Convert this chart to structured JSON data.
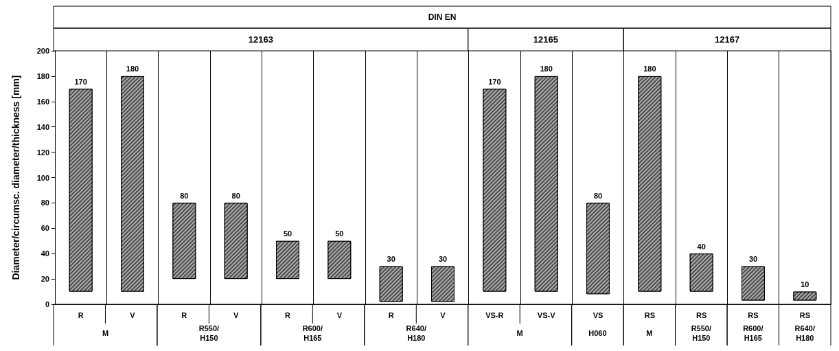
{
  "chart_data": {
    "type": "bar",
    "ylabel": "Diameter/circumsc. diameter/thickness [mm]",
    "categories": [
      "R",
      "V",
      "R",
      "V",
      "R",
      "V",
      "R",
      "V",
      "VS-R",
      "VS-V",
      "VS",
      "RS",
      "RS",
      "RS",
      "RS"
    ],
    "base": [
      10,
      10,
      20,
      20,
      20,
      20,
      2,
      2,
      10,
      10,
      8,
      10,
      10,
      3,
      3
    ],
    "values": [
      160,
      170,
      60,
      60,
      30,
      30,
      28,
      28,
      160,
      170,
      72,
      170,
      30,
      27,
      7
    ],
    "value_labels": [
      "170",
      "180",
      "80",
      "80",
      "50",
      "50",
      "30",
      "30",
      "170",
      "180",
      "80",
      "180",
      "40",
      "30",
      "10"
    ],
    "color": "#4a4a4a",
    "ylim": [
      0,
      200
    ],
    "yticks": [
      0,
      20,
      40,
      60,
      80,
      100,
      120,
      140,
      160,
      180,
      200
    ],
    "grid": "x",
    "annotations": [
      "M",
      "R550/\nH150",
      "R600/\nH165",
      "R640/\nH180",
      "M",
      "H060",
      "M",
      "R550/\nH150",
      "R600/\nH165",
      "R640/\nH180",
      "12163",
      "12165",
      "12167",
      "DIN EN"
    ]
  }
}
